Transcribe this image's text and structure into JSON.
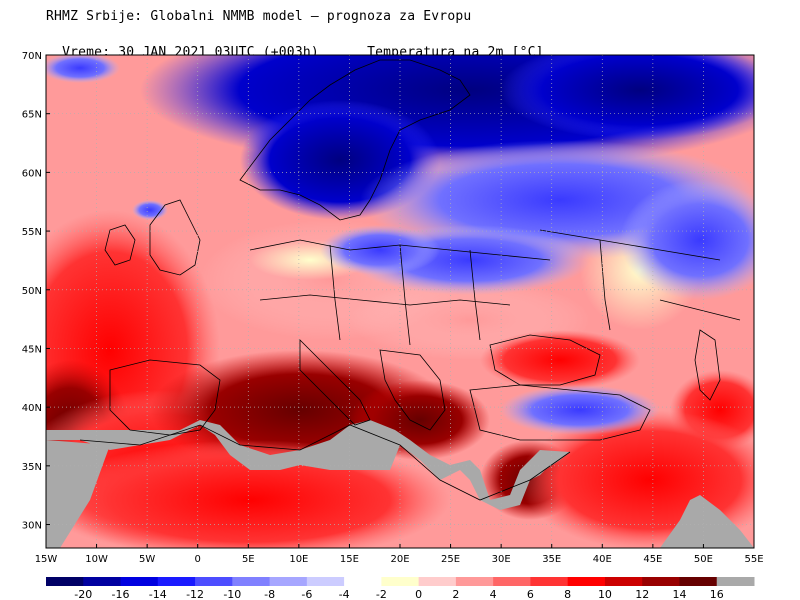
{
  "header": {
    "line1": "RHMZ Srbije: Globalni NMMB model — prognoza za Evropu",
    "line2_left": "Vreme: 30 JAN 2021 03UTC (+003h)",
    "line2_right": "Temperatura na 2m [°C]"
  },
  "map": {
    "lat_ticks": [
      "70N",
      "65N",
      "60N",
      "55N",
      "50N",
      "45N",
      "40N",
      "35N",
      "30N"
    ],
    "lat_values": [
      70,
      65,
      60,
      55,
      50,
      45,
      40,
      35,
      30
    ],
    "lon_ticks": [
      "15W",
      "10W",
      "5W",
      "0",
      "5E",
      "10E",
      "15E",
      "20E",
      "25E",
      "30E",
      "35E",
      "40E",
      "45E",
      "50E",
      "55E"
    ],
    "lon_values": [
      -15,
      -10,
      -5,
      0,
      5,
      10,
      15,
      20,
      25,
      30,
      35,
      40,
      45,
      50,
      55
    ],
    "extent": {
      "lon_min": -15,
      "lon_max": 55,
      "lat_min": 28,
      "lat_max": 70
    },
    "land_mask_color": "#a9a9a9",
    "border_color": "#000000",
    "grid_color": "#b0b0b0"
  },
  "colorbar": {
    "labels": [
      "-20",
      "-16",
      "-14",
      "-12",
      "-10",
      "-8",
      "-6",
      "-4",
      "-2",
      "0",
      "2",
      "4",
      "6",
      "8",
      "10",
      "12",
      "14",
      "16"
    ],
    "colors": [
      "#000066",
      "#0000a0",
      "#0000e0",
      "#1a1aff",
      "#4d4dff",
      "#8080ff",
      "#a6a6ff",
      "#ccccff",
      "#ffffff",
      "#ffffcc",
      "#ffcccc",
      "#ff9999",
      "#ff6666",
      "#ff3333",
      "#ff0000",
      "#cc0000",
      "#990000",
      "#660000",
      "#a9a9a9"
    ]
  }
}
